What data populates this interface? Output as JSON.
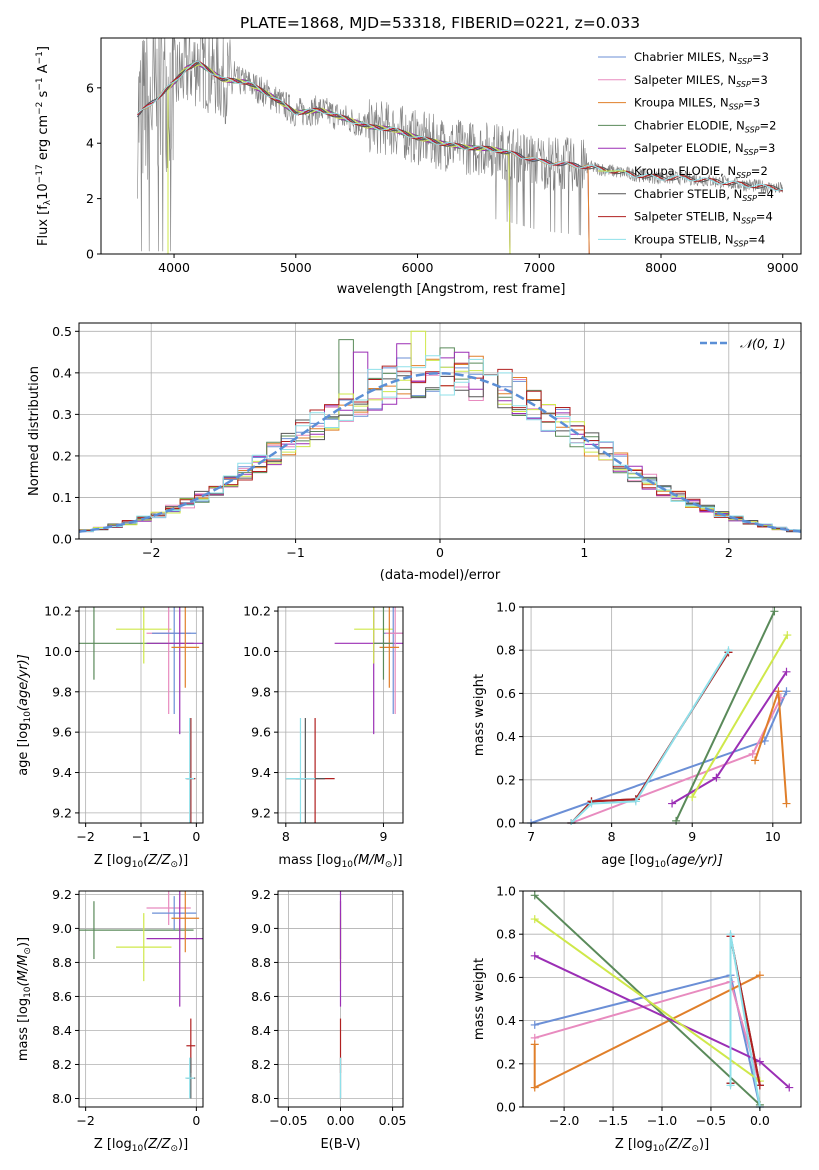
{
  "figure_title": "PLATE=1868, MJD=53318, FIBERID=0221, z=0.033",
  "colors": {
    "Chabrier MILES": "#6b8fd6",
    "Salpeter MILES": "#e88bbf",
    "Kroupa MILES": "#e07f2a",
    "Chabrier ELODIE": "#5a8a5a",
    "Salpeter ELODIE": "#9b2fb5",
    "Kroupa ELODIE": "#cfe84a",
    "Chabrier STELIB": "#555555",
    "Salpeter STELIB": "#b02020",
    "Kroupa STELIB": "#8fe0ea",
    "data": "#808080",
    "normal": "#5b8fd6"
  },
  "chart_data": [
    {
      "id": "spectrum",
      "type": "line",
      "title": "PLATE=1868, MJD=53318, FIBERID=0221, z=0.033",
      "xlabel": "wavelength [Angstrom, rest frame]",
      "ylabel": "Flux [f",
      "ylabel_sub": "λ",
      "ylabel_rest": "10",
      "ylabel_exp": "−17",
      "ylabel_tail": " erg cm",
      "ylabel_exp2": "−2",
      "ylabel_tail2": " s",
      "ylabel_exp3": "−1",
      "ylabel_tail3": " A",
      "ylabel_exp4": "−1",
      "ylabel_end": "]",
      "xlim": [
        3400,
        9150
      ],
      "ylim": [
        0,
        7.8
      ],
      "xticks": [
        4000,
        5000,
        6000,
        7000,
        8000,
        9000
      ],
      "yticks": [
        0,
        2,
        4,
        6
      ],
      "grid": false,
      "legend_placement": "upper right",
      "legend": [
        {
          "name": "Chabrier MILES",
          "nssp": "3"
        },
        {
          "name": "Salpeter MILES",
          "nssp": "3"
        },
        {
          "name": "Kroupa MILES",
          "nssp": "3"
        },
        {
          "name": "Chabrier ELODIE",
          "nssp": "2"
        },
        {
          "name": "Salpeter ELODIE",
          "nssp": "3"
        },
        {
          "name": "Kroupa ELODIE",
          "nssp": "2"
        },
        {
          "name": "Chabrier STELIB",
          "nssp": "4"
        },
        {
          "name": "Salpeter STELIB",
          "nssp": "4"
        },
        {
          "name": "Kroupa STELIB",
          "nssp": "4"
        }
      ],
      "continuum": [
        [
          3700,
          5.0
        ],
        [
          3850,
          5.6
        ],
        [
          4000,
          6.2
        ],
        [
          4100,
          6.7
        ],
        [
          4200,
          6.9
        ],
        [
          4300,
          6.6
        ],
        [
          4400,
          6.3
        ],
        [
          4600,
          6.2
        ],
        [
          4800,
          5.7
        ],
        [
          5000,
          5.1
        ],
        [
          5200,
          5.2
        ],
        [
          5400,
          4.9
        ],
        [
          5600,
          4.6
        ],
        [
          5800,
          4.5
        ],
        [
          6000,
          4.2
        ],
        [
          6200,
          4.0
        ],
        [
          6400,
          3.85
        ],
        [
          6600,
          3.8
        ],
        [
          6800,
          3.6
        ],
        [
          7000,
          3.35
        ],
        [
          7200,
          3.25
        ],
        [
          7400,
          3.15
        ],
        [
          7600,
          3.0
        ],
        [
          7800,
          2.85
        ],
        [
          8000,
          2.75
        ],
        [
          8200,
          2.75
        ],
        [
          8400,
          2.65
        ],
        [
          8600,
          2.55
        ],
        [
          8800,
          2.45
        ],
        [
          9000,
          2.35
        ]
      ],
      "model_ranges": {
        "Chabrier MILES": [
          3700,
          7410
        ],
        "Salpeter MILES": [
          3700,
          7410
        ],
        "Kroupa MILES": [
          3700,
          7410
        ],
        "Chabrier ELODIE": [
          3950,
          6760
        ],
        "Salpeter ELODIE": [
          3950,
          6760
        ],
        "Kroupa ELODIE": [
          3950,
          6760
        ],
        "Chabrier STELIB": [
          3700,
          9000
        ],
        "Salpeter STELIB": [
          3700,
          9000
        ],
        "Kroupa STELIB": [
          3700,
          9000
        ]
      }
    },
    {
      "id": "residuals",
      "type": "step",
      "xlabel": "(data-model)/error",
      "ylabel": "Normed distribution",
      "xlim": [
        -2.5,
        2.5
      ],
      "ylim": [
        0,
        0.52
      ],
      "xticks": [
        -2,
        -1,
        0,
        1,
        2
      ],
      "xtick_labels": [
        "−2",
        "−1",
        "0",
        "1",
        "2"
      ],
      "yticks": [
        0.0,
        0.1,
        0.2,
        0.3,
        0.4,
        0.5
      ],
      "ytick_labels": [
        "0.0",
        "0.1",
        "0.2",
        "0.3",
        "0.4",
        "0.5"
      ],
      "grid": true,
      "legend_label": "𝒩(0, 1)",
      "legend_placement": "upper right",
      "bin_width": 0.1,
      "peak_bins": {
        "Salpeter ELODIE": [
          -0.55,
          0.45,
          -0.25,
          0.47
        ],
        "Chabrier ELODIE": [
          -0.65,
          0.48,
          0.05,
          0.46
        ],
        "Kroupa ELODIE": [
          -0.15,
          0.5,
          -0.05,
          0.43
        ],
        "Kroupa MILES": [
          0.15,
          0.42,
          0.25,
          0.44
        ]
      }
    },
    {
      "id": "age_vs_Z",
      "type": "errorbar",
      "xlabel": "Z [log",
      "xlabel_sub": "10",
      "xlabel_tail": "(Z/Z",
      "xlabel_sub2": "⊙",
      "xlabel_end": ")]",
      "ylabel": "age  [log",
      "ylabel_sub": "10",
      "ylabel_tail": "(age/yr)]",
      "xlim": [
        -2.12,
        0.12
      ],
      "ylim": [
        9.15,
        10.22
      ],
      "xticks": [
        -2,
        -1,
        0
      ],
      "xtick_labels": [
        "−2",
        "−1",
        "0"
      ],
      "yticks": [
        9.2,
        9.4,
        9.6,
        9.8,
        10.0,
        10.2
      ],
      "ytick_labels": [
        "9.2",
        "9.4",
        "9.6",
        "9.8",
        "10.0",
        "10.2"
      ],
      "grid": true,
      "points": [
        {
          "model": "Chabrier ELODIE",
          "x": -1.85,
          "xerr": 1.8,
          "y": 10.04,
          "yerr": 0.18
        },
        {
          "model": "Kroupa ELODIE",
          "x": -0.95,
          "xerr": 0.5,
          "y": 10.11,
          "yerr": 0.17
        },
        {
          "model": "Salpeter MILES",
          "x": -0.5,
          "xerr": 0.4,
          "y": 10.09,
          "yerr": 0.4
        },
        {
          "model": "Chabrier MILES",
          "x": -0.4,
          "xerr": 0.4,
          "y": 10.09,
          "yerr": 0.4
        },
        {
          "model": "Salpeter ELODIE",
          "x": -0.3,
          "xerr": 0.6,
          "y": 10.04,
          "yerr": 0.45
        },
        {
          "model": "Kroupa MILES",
          "x": -0.2,
          "xerr": 0.25,
          "y": 10.02,
          "yerr": 0.2
        },
        {
          "model": "Chabrier STELIB",
          "x": -0.1,
          "xerr": 0.08,
          "y": 9.37,
          "yerr": 0.3
        },
        {
          "model": "Salpeter STELIB",
          "x": -0.1,
          "xerr": 0.08,
          "y": 9.37,
          "yerr": 0.3
        },
        {
          "model": "Kroupa STELIB",
          "x": -0.12,
          "xerr": 0.08,
          "y": 9.37,
          "yerr": 0.3
        }
      ]
    },
    {
      "id": "age_vs_mass",
      "type": "errorbar",
      "xlabel": "mass [log",
      "xlabel_sub": "10",
      "xlabel_tail": "(M/M",
      "xlabel_sub2": "⊙",
      "xlabel_end": ")]",
      "xlim": [
        7.92,
        9.2
      ],
      "ylim": [
        9.15,
        10.22
      ],
      "xticks": [
        8,
        9
      ],
      "xtick_labels": [
        "8",
        "9"
      ],
      "yticks": [
        9.2,
        9.4,
        9.6,
        9.8,
        10.0,
        10.2
      ],
      "ytick_labels": [
        "9.2",
        "9.4",
        "9.6",
        "9.8",
        "10.0",
        "10.2"
      ],
      "grid": true,
      "points": [
        {
          "model": "Salpeter ELODIE",
          "x": 8.9,
          "xerr": 0.4,
          "y": 10.04,
          "yerr": 0.45
        },
        {
          "model": "Kroupa ELODIE",
          "x": 8.9,
          "xerr": 0.2,
          "y": 10.11,
          "yerr": 0.17
        },
        {
          "model": "Chabrier MILES",
          "x": 9.1,
          "xerr": 0.1,
          "y": 10.09,
          "yerr": 0.4
        },
        {
          "model": "Salpeter MILES",
          "x": 9.12,
          "xerr": 0.1,
          "y": 10.09,
          "yerr": 0.4
        },
        {
          "model": "Kroupa MILES",
          "x": 9.06,
          "xerr": 0.1,
          "y": 10.02,
          "yerr": 0.2
        },
        {
          "model": "Chabrier ELODIE",
          "x": 9.0,
          "xerr": 0.1,
          "y": 10.04,
          "yerr": 0.18
        },
        {
          "model": "Salpeter STELIB",
          "x": 8.3,
          "xerr": 0.2,
          "y": 9.37,
          "yerr": 0.3
        },
        {
          "model": "Chabrier STELIB",
          "x": 8.2,
          "xerr": 0.2,
          "y": 9.37,
          "yerr": 0.3
        },
        {
          "model": "Kroupa STELIB",
          "x": 8.15,
          "xerr": 0.15,
          "y": 9.37,
          "yerr": 0.3
        }
      ]
    },
    {
      "id": "weight_vs_age",
      "type": "line",
      "xlabel": "age  [log",
      "xlabel_sub": "10",
      "xlabel_tail": "(age/yr)]",
      "ylabel": "mass weight",
      "xlim": [
        6.9,
        10.35
      ],
      "ylim": [
        0,
        1.0
      ],
      "xticks": [
        7,
        8,
        9,
        10
      ],
      "xtick_labels": [
        "7",
        "8",
        "9",
        "10"
      ],
      "yticks": [
        0.0,
        0.2,
        0.4,
        0.6,
        0.8,
        1.0
      ],
      "ytick_labels": [
        "0.0",
        "0.2",
        "0.4",
        "0.6",
        "0.8",
        "1.0"
      ],
      "grid": true,
      "series": [
        {
          "model": "Chabrier MILES",
          "points": [
            [
              7.0,
              0.0
            ],
            [
              9.9,
              0.38
            ],
            [
              10.17,
              0.61
            ]
          ]
        },
        {
          "model": "Salpeter MILES",
          "points": [
            [
              7.5,
              0.0
            ],
            [
              9.75,
              0.32
            ],
            [
              10.1,
              0.58
            ]
          ]
        },
        {
          "model": "Kroupa MILES",
          "points": [
            [
              9.78,
              0.29
            ],
            [
              10.07,
              0.61
            ],
            [
              10.17,
              0.09
            ]
          ]
        },
        {
          "model": "Chabrier ELODIE",
          "points": [
            [
              8.8,
              0.01
            ],
            [
              10.02,
              0.98
            ]
          ]
        },
        {
          "model": "Salpeter ELODIE",
          "points": [
            [
              8.75,
              0.09
            ],
            [
              9.3,
              0.21
            ],
            [
              10.17,
              0.7
            ]
          ]
        },
        {
          "model": "Kroupa ELODIE",
          "points": [
            [
              9.0,
              0.12
            ],
            [
              10.18,
              0.87
            ]
          ]
        },
        {
          "model": "Chabrier STELIB",
          "points": [
            [
              7.5,
              0.0
            ],
            [
              7.75,
              0.1
            ],
            [
              8.3,
              0.11
            ],
            [
              9.45,
              0.79
            ]
          ]
        },
        {
          "model": "Salpeter STELIB",
          "points": [
            [
              7.5,
              0.0
            ],
            [
              7.75,
              0.1
            ],
            [
              8.3,
              0.11
            ],
            [
              9.45,
              0.79
            ]
          ]
        },
        {
          "model": "Kroupa STELIB",
          "points": [
            [
              7.5,
              0.0
            ],
            [
              7.75,
              0.09
            ],
            [
              8.3,
              0.1
            ],
            [
              9.45,
              0.8
            ]
          ]
        }
      ]
    },
    {
      "id": "mass_vs_Z",
      "type": "errorbar",
      "xlabel": "Z [log",
      "xlabel_sub": "10",
      "xlabel_tail": "(Z/Z",
      "xlabel_sub2": "⊙",
      "xlabel_end": ")]",
      "ylabel": "mass [log",
      "ylabel_sub": "10",
      "ylabel_tail": "(M/M",
      "ylabel_sub2": "⊙",
      "ylabel_end": ")]",
      "xlim": [
        -2.12,
        0.12
      ],
      "ylim": [
        7.95,
        9.22
      ],
      "xticks": [
        -2,
        0
      ],
      "xtick_labels": [
        "−2",
        "0"
      ],
      "yticks": [
        8.0,
        8.2,
        8.4,
        8.6,
        8.8,
        9.0,
        9.2
      ],
      "ytick_labels": [
        "8.0",
        "8.2",
        "8.4",
        "8.6",
        "8.8",
        "9.0",
        "9.2"
      ],
      "grid": true,
      "points": [
        {
          "model": "Chabrier ELODIE",
          "x": -1.85,
          "xerr": 1.8,
          "y": 8.99,
          "yerr": 0.17
        },
        {
          "model": "Kroupa ELODIE",
          "x": -0.95,
          "xerr": 0.5,
          "y": 8.89,
          "yerr": 0.2
        },
        {
          "model": "Salpeter MILES",
          "x": -0.5,
          "xerr": 0.4,
          "y": 9.12,
          "yerr": 0.1
        },
        {
          "model": "Chabrier MILES",
          "x": -0.4,
          "xerr": 0.4,
          "y": 9.09,
          "yerr": 0.1
        },
        {
          "model": "Salpeter ELODIE",
          "x": -0.3,
          "xerr": 0.6,
          "y": 8.94,
          "yerr": 0.4
        },
        {
          "model": "Kroupa MILES",
          "x": -0.2,
          "xerr": 0.25,
          "y": 9.06,
          "yerr": 0.2
        },
        {
          "model": "Salpeter STELIB",
          "x": -0.1,
          "xerr": 0.08,
          "y": 8.31,
          "yerr": 0.16
        },
        {
          "model": "Chabrier STELIB",
          "x": -0.1,
          "xerr": 0.08,
          "y": 8.12,
          "yerr": 0.12
        },
        {
          "model": "Kroupa STELIB",
          "x": -0.12,
          "xerr": 0.08,
          "y": 8.12,
          "yerr": 0.12
        }
      ]
    },
    {
      "id": "mass_vs_ebv",
      "type": "errorbar",
      "xlabel": "E(B-V)",
      "xlim": [
        -0.06,
        0.06
      ],
      "ylim": [
        7.95,
        9.22
      ],
      "xticks": [
        -0.05,
        0.0,
        0.05
      ],
      "xtick_labels": [
        "−0.05",
        "0.00",
        "0.05"
      ],
      "yticks": [
        8.0,
        8.2,
        8.4,
        8.6,
        8.8,
        9.0,
        9.2
      ],
      "ytick_labels": [
        "8.0",
        "8.2",
        "8.4",
        "8.6",
        "8.8",
        "9.0",
        "9.2"
      ],
      "grid": true,
      "points": [
        {
          "model": "Chabrier ELODIE",
          "x": 0.0,
          "xerr": 0.0,
          "y": 8.99,
          "yerr": 0.17
        },
        {
          "model": "Kroupa ELODIE",
          "x": 0.0,
          "xerr": 0.0,
          "y": 8.89,
          "yerr": 0.2
        },
        {
          "model": "Salpeter ELODIE",
          "x": 0.0,
          "xerr": 0.0,
          "y": 8.94,
          "yerr": 0.4
        },
        {
          "model": "Salpeter STELIB",
          "x": 0.0,
          "xerr": 0.0,
          "y": 8.31,
          "yerr": 0.16
        },
        {
          "model": "Chabrier STELIB",
          "x": 0.0,
          "xerr": 0.0,
          "y": 8.12,
          "yerr": 0.12
        },
        {
          "model": "Kroupa STELIB",
          "x": 0.0,
          "xerr": 0.0,
          "y": 8.12,
          "yerr": 0.12
        }
      ]
    },
    {
      "id": "weight_vs_Z",
      "type": "line",
      "xlabel": "Z [log",
      "xlabel_sub": "10",
      "xlabel_tail": "(Z/Z",
      "xlabel_sub2": "⊙",
      "xlabel_end": ")]",
      "ylabel": "mass weight",
      "xlim": [
        -2.42,
        0.42
      ],
      "ylim": [
        0,
        1.0
      ],
      "xticks": [
        -2.0,
        -1.5,
        -1.0,
        -0.5,
        0.0
      ],
      "xtick_labels": [
        "−2.0",
        "−1.5",
        "−1.0",
        "−0.5",
        "0.0"
      ],
      "yticks": [
        0.0,
        0.2,
        0.4,
        0.6,
        0.8,
        1.0
      ],
      "ytick_labels": [
        "0.0",
        "0.2",
        "0.4",
        "0.6",
        "0.8",
        "1.0"
      ],
      "grid": true,
      "series": [
        {
          "model": "Chabrier MILES",
          "points": [
            [
              -2.3,
              0.38
            ],
            [
              -0.3,
              0.61
            ],
            [
              0.0,
              0.0
            ]
          ]
        },
        {
          "model": "Salpeter MILES",
          "points": [
            [
              -2.3,
              0.32
            ],
            [
              -0.3,
              0.58
            ],
            [
              0.0,
              0.1
            ]
          ]
        },
        {
          "model": "Kroupa MILES",
          "points": [
            [
              -2.3,
              0.29
            ],
            [
              -2.3,
              0.09
            ],
            [
              0.0,
              0.61
            ]
          ]
        },
        {
          "model": "Chabrier ELODIE",
          "points": [
            [
              -2.3,
              0.98
            ],
            [
              0.0,
              0.01
            ]
          ]
        },
        {
          "model": "Salpeter ELODIE",
          "points": [
            [
              -2.3,
              0.7
            ],
            [
              0.0,
              0.21
            ],
            [
              0.3,
              0.09
            ]
          ]
        },
        {
          "model": "Kroupa ELODIE",
          "points": [
            [
              -2.3,
              0.87
            ],
            [
              0.0,
              0.12
            ]
          ]
        },
        {
          "model": "Chabrier STELIB",
          "points": [
            [
              -0.3,
              0.11
            ],
            [
              -0.3,
              0.79
            ],
            [
              0.0,
              0.1
            ]
          ]
        },
        {
          "model": "Salpeter STELIB",
          "points": [
            [
              -0.3,
              0.11
            ],
            [
              -0.3,
              0.79
            ],
            [
              0.0,
              0.1
            ]
          ]
        },
        {
          "model": "Kroupa STELIB",
          "points": [
            [
              -0.3,
              0.1
            ],
            [
              -0.3,
              0.8
            ],
            [
              0.0,
              0.0
            ]
          ]
        }
      ]
    }
  ]
}
